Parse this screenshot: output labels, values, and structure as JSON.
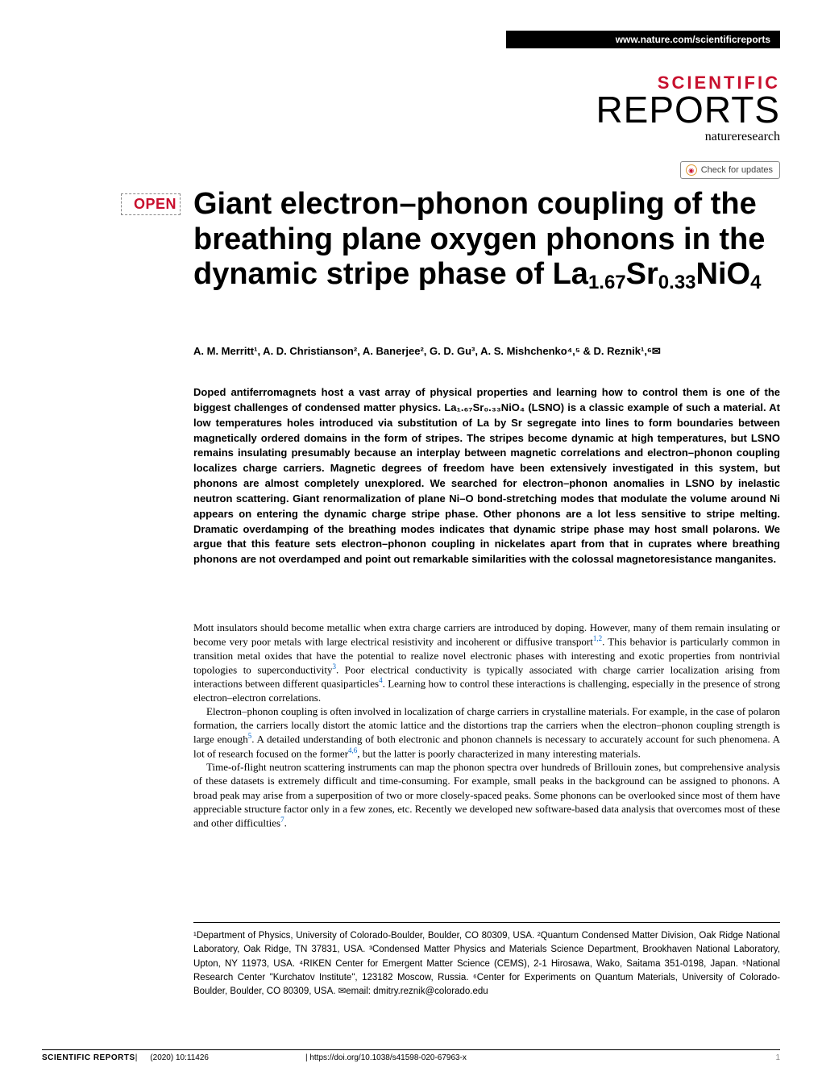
{
  "header": {
    "url": "www.nature.com/scientificreports"
  },
  "journal": {
    "line1": "SCIENTIFIC",
    "line2": "REPORTS",
    "line3": "natureresearch"
  },
  "check_updates": "Check for updates",
  "open_label": "OPEN",
  "title": {
    "line1": "Giant electron–phonon coupling",
    "line2": "of the breathing plane oxygen",
    "line3": "phonons in the dynamic stripe",
    "line4_pre": "phase of La",
    "sub1": "1.67",
    "mid1": "Sr",
    "sub2": "0.33",
    "mid2": "NiO",
    "sub3": "4"
  },
  "authors": "A. M. Merritt¹, A. D. Christianson², A. Banerjee², G. D. Gu³, A. S. Mishchenko⁴,⁵ & D. Reznik¹,⁶✉",
  "abstract": "Doped antiferromagnets host a vast array of physical properties and learning how to control them is one of the biggest challenges of condensed matter physics. La₁.₆₇Sr₀.₃₃NiO₄ (LSNO) is a classic example of such a material. At low temperatures holes introduced via substitution of La by Sr segregate into lines to form boundaries between magnetically ordered domains in the form of stripes. The stripes become dynamic at high temperatures, but LSNO remains insulating presumably because an interplay between magnetic correlations and electron–phonon coupling localizes charge carriers. Magnetic degrees of freedom have been extensively investigated in this system, but phonons are almost completely unexplored. We searched for electron–phonon anomalies in LSNO by inelastic neutron scattering. Giant renormalization of plane Ni–O bond-stretching modes that modulate the volume around Ni appears on entering the dynamic charge stripe phase. Other phonons are a lot less sensitive to stripe melting. Dramatic overdamping of the breathing modes indicates that dynamic stripe phase may host small polarons. We argue that this feature sets electron–phonon coupling in nickelates apart from that in cuprates where breathing phonons are not overdamped and point out remarkable similarities with the colossal magnetoresistance manganites.",
  "body": {
    "p1_a": "Mott insulators should become metallic when extra charge carriers are introduced by doping. However, many of them remain insulating or become very poor metals with large electrical resistivity and incoherent or diffusive transport",
    "p1_ref1": "1,2",
    "p1_b": ". This behavior is particularly common in transition metal oxides that have the potential to realize novel electronic phases with interesting and exotic properties from nontrivial topologies to superconductivity",
    "p1_ref2": "3",
    "p1_c": ". Poor electrical conductivity is typically associated with charge carrier localization arising from interactions between different quasiparticles",
    "p1_ref3": "4",
    "p1_d": ". Learning how to control these interactions is challenging, especially in the presence of strong electron–electron correlations.",
    "p2_a": "Electron–phonon coupling is often involved in localization of charge carriers in crystalline materials. For example, in the case of polaron formation, the carriers locally distort the atomic lattice and the distortions trap the carriers when the electron–phonon coupling strength is large enough",
    "p2_ref1": "5",
    "p2_b": ". A detailed understanding of both electronic and phonon channels is necessary to accurately account for such phenomena. A lot of research focused on the former",
    "p2_ref2": "4,6",
    "p2_c": ", but the latter is poorly characterized in many interesting materials.",
    "p3_a": "Time-of-flight neutron scattering instruments can map the phonon spectra over hundreds of Brillouin zones, but comprehensive analysis of these datasets is extremely difficult and time-consuming. For example, small peaks in the background can be assigned to phonons. A broad peak may arise from a superposition of two or more closely-spaced peaks. Some phonons can be overlooked since most of them have appreciable structure factor only in a few zones, etc. Recently we developed new software-based data analysis that overcomes most of these and other difficulties",
    "p3_ref1": "7",
    "p3_b": "."
  },
  "affiliations": "¹Department of Physics, University of Colorado-Boulder, Boulder, CO 80309, USA. ²Quantum Condensed Matter Division, Oak Ridge National Laboratory, Oak Ridge, TN 37831, USA. ³Condensed Matter Physics and Materials Science Department, Brookhaven National Laboratory, Upton, NY 11973, USA. ⁴RIKEN Center for Emergent Matter Science (CEMS), 2-1 Hirosawa, Wako, Saitama 351-0198, Japan. ⁵National Research Center \"Kurchatov Institute\", 123182 Moscow, Russia. ⁶Center for Experiments on Quantum Materials, University of Colorado-Boulder, Boulder, CO 80309, USA. ✉email: dmitry.reznik@colorado.edu",
  "footer": {
    "sr": "SCIENTIFIC REPORTS",
    "cite": "(2020) 10:11426",
    "doi": "| https://doi.org/10.1038/s41598-020-67963-x",
    "page": "1"
  },
  "colors": {
    "brand_red": "#c8102e",
    "link_blue": "#0066cc",
    "black": "#000000",
    "mid_gray": "#888888"
  }
}
